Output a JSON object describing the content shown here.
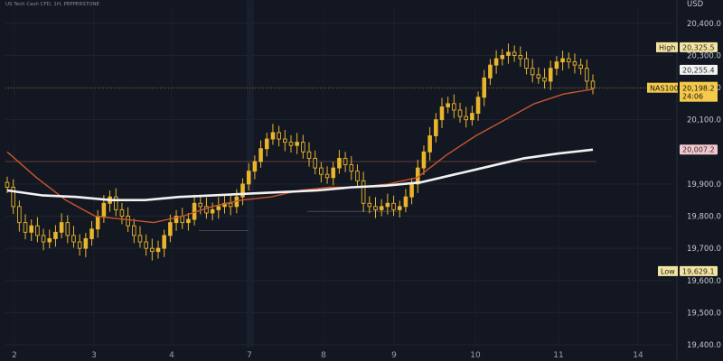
{
  "header": {
    "symbol_line": "US Tech Cash CFD, 1H, PEPPERSTONE"
  },
  "axis": {
    "currency": "USD"
  },
  "chart_data": {
    "type": "candlestick",
    "title": "",
    "xlabel": "",
    "ylabel": "",
    "ylim": [
      19400,
      20450
    ],
    "x_ticks": [
      "2",
      "3",
      "4",
      "7",
      "8",
      "9",
      "10",
      "11",
      "14"
    ],
    "y_ticks": [
      "20,400.0",
      "20,300.0",
      "20,200.0",
      "20,100.0",
      "19,900.0",
      "19,800.0",
      "19,700.0",
      "19,600.0",
      "19,500.0",
      "19,400.0"
    ],
    "labels": {
      "high_label": "High",
      "high_value": "20,325.5",
      "prior_value": "20,255.4",
      "symbol_tag": "NAS100",
      "current_value": "20,198.2",
      "countdown": "24:06",
      "ma_value": "20,007.2",
      "low_label": "Low",
      "low_value": "19,629.1"
    },
    "levels": {
      "high": 20325.5,
      "prior": 20255.4,
      "current": 20198.2,
      "ma_long_last": 20007.2,
      "low": 19629.1
    },
    "series": [
      {
        "kind": "candles",
        "closes": [
          19890,
          19830,
          19780,
          19750,
          19770,
          19740,
          19720,
          19730,
          19750,
          19780,
          19740,
          19720,
          19700,
          19730,
          19760,
          19800,
          19840,
          19860,
          19820,
          19800,
          19770,
          19740,
          19720,
          19700,
          19690,
          19700,
          19740,
          19780,
          19800,
          19780,
          19790,
          19840,
          19830,
          19810,
          19820,
          19830,
          19840,
          19830,
          19860,
          19900,
          19940,
          19970,
          20010,
          20040,
          20060,
          20040,
          20030,
          20020,
          20030,
          20000,
          19980,
          19950,
          19930,
          19920,
          19950,
          19980,
          19960,
          19940,
          19910,
          19840,
          19830,
          19820,
          19830,
          19840,
          19820,
          19830,
          19860,
          19900,
          19950,
          20000,
          20050,
          20100,
          20140,
          20150,
          20130,
          20110,
          20100,
          20120,
          20170,
          20230,
          20270,
          20290,
          20300,
          20310,
          20300,
          20290,
          20260,
          20240,
          20230,
          20220,
          20260,
          20280,
          20290,
          20280,
          20270,
          20260,
          20220,
          20198
        ]
      },
      {
        "kind": "ma_short",
        "values": [
          20000,
          19920,
          19850,
          19800,
          19790,
          19780,
          19800,
          19830,
          19850,
          19860,
          19880,
          19890,
          19890,
          19900,
          19920,
          19990,
          20050,
          20100,
          20150,
          20180,
          20195
        ]
      },
      {
        "kind": "ma_long",
        "values": [
          19880,
          19865,
          19860,
          19850,
          19850,
          19860,
          19865,
          19870,
          19875,
          19880,
          19890,
          19895,
          19905,
          19930,
          19955,
          19980,
          19995,
          20007
        ]
      }
    ]
  },
  "colors": {
    "background": "#131722",
    "candle": "#e8b52c",
    "ma_short": "#c9562c",
    "ma_long": "#f2f2f2",
    "tag_yellow": "#f5c94a",
    "tag_pink": "#f4c7cf"
  }
}
